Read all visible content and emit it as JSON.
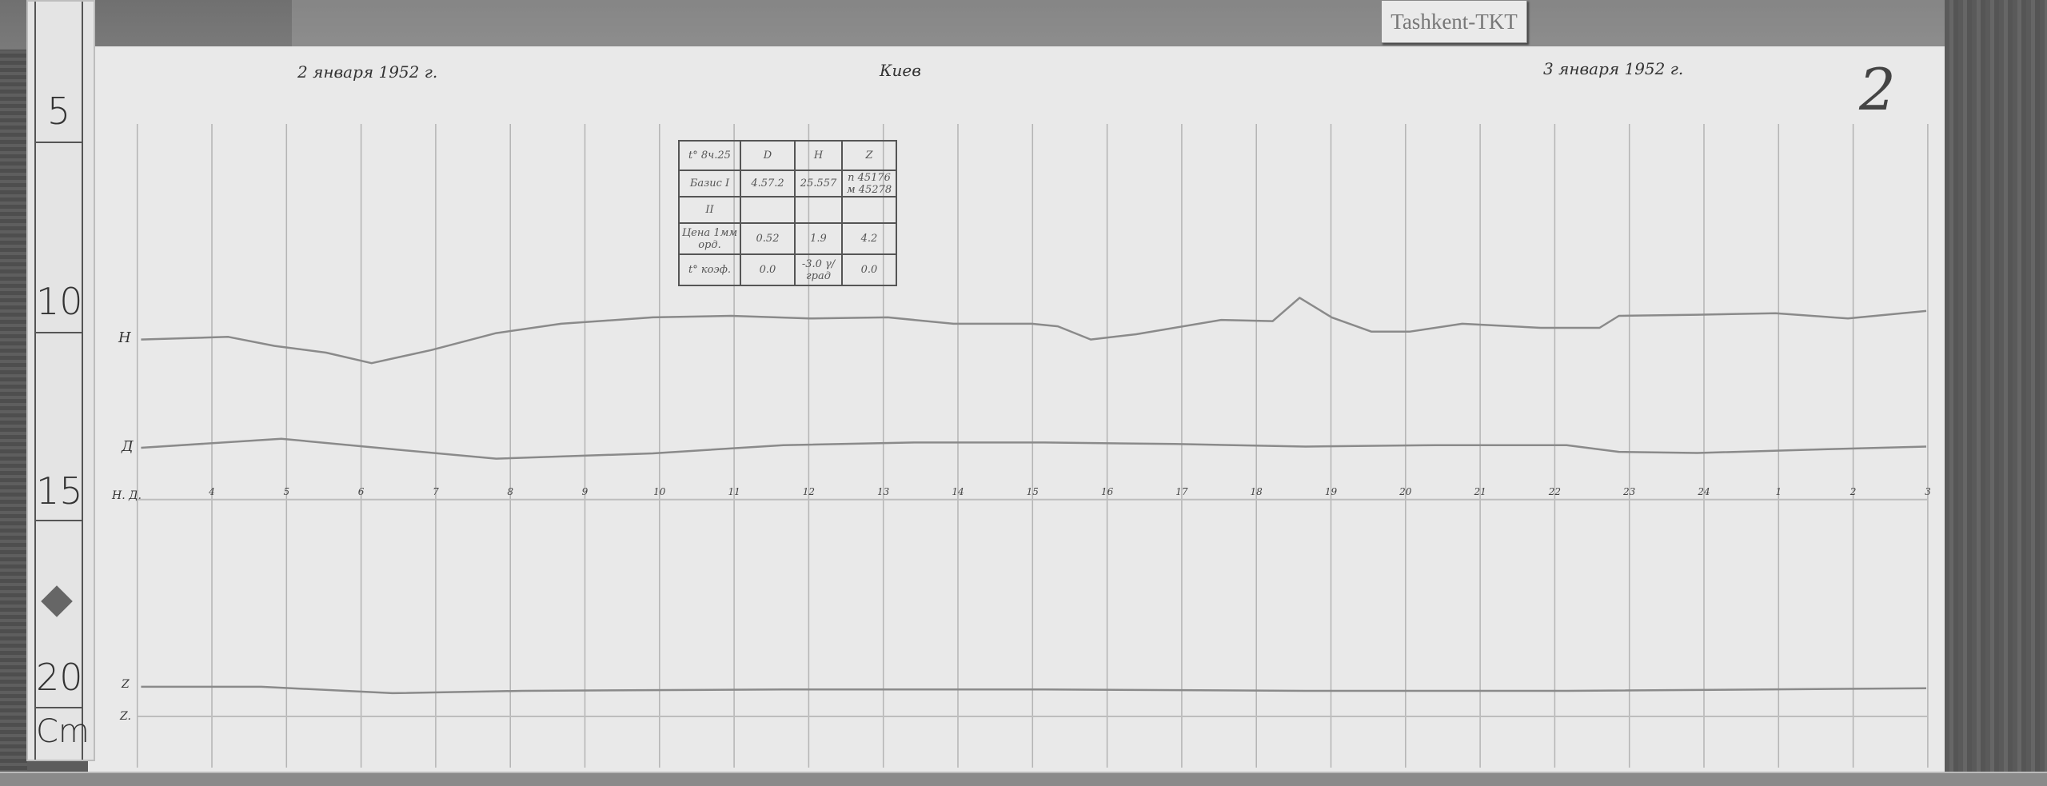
{
  "station_tag": "Tashkent-TKT",
  "header": {
    "start_date": "2 января 1952 г.",
    "station": "Киев",
    "end_date": "3 января 1952 г.",
    "sheet_number": "2"
  },
  "ruler": {
    "labels": [
      "5",
      "10",
      "15",
      "20"
    ],
    "unit": "Cm"
  },
  "trace_labels": {
    "h": "Н",
    "d": "Д",
    "hd_baseline": "H. Д.",
    "z": "Z",
    "z_baseline": "Z."
  },
  "info_table": {
    "rows": [
      [
        "t° 8ч.25",
        "D",
        "H",
        "Z"
      ],
      [
        "Базис I",
        "4.57.2",
        "25.557",
        "п 45176 м 45278"
      ],
      [
        "II",
        "",
        "",
        ""
      ],
      [
        "Цена 1мм орд.",
        "0.52",
        "1.9",
        "4.2"
      ],
      [
        "t° коэф.",
        "0.0",
        "-3.0 γ/град",
        "0.0"
      ]
    ]
  },
  "chart_data": {
    "type": "line",
    "title": "",
    "xlabel": "",
    "ylabel": "",
    "x_tick_labels": [
      "4",
      "5",
      "6",
      "7",
      "8",
      "9",
      "10",
      "11",
      "12",
      "13",
      "14",
      "15",
      "16",
      "17",
      "18",
      "19",
      "20",
      "21",
      "22",
      "23",
      "24",
      "1",
      "2",
      "3"
    ],
    "x_ticks_hours": [
      4,
      5,
      6,
      7,
      8,
      9,
      10,
      11,
      12,
      13,
      14,
      15,
      16,
      17,
      18,
      19,
      20,
      21,
      22,
      23,
      24,
      25,
      26,
      27
    ],
    "xlim": [
      3,
      27
    ],
    "y_unit": "Cm",
    "ylim": [
      3,
      21
    ],
    "grid": "vertical hourly lines",
    "baselines": [
      {
        "label": "H. Д.",
        "y": 15.23
      },
      {
        "label": "Z.",
        "y": 21.0
      }
    ],
    "series": [
      {
        "name": "Н",
        "x": [
          3.05,
          4.22,
          4.84,
          5.53,
          6.14,
          6.94,
          7.81,
          8.68,
          9.91,
          10.96,
          12.01,
          13.06,
          13.94,
          14.99,
          15.34,
          15.78,
          16.39,
          17.53,
          18.22,
          18.58,
          19.01,
          19.54,
          20.06,
          20.76,
          21.81,
          22.6,
          22.86,
          23.91,
          24.96,
          25.93,
          26.98
        ],
        "y": [
          10.97,
          10.9,
          11.14,
          11.32,
          11.6,
          11.25,
          10.8,
          10.55,
          10.38,
          10.34,
          10.41,
          10.38,
          10.55,
          10.55,
          10.62,
          10.97,
          10.83,
          10.45,
          10.48,
          9.86,
          10.38,
          10.76,
          10.76,
          10.55,
          10.66,
          10.66,
          10.34,
          10.31,
          10.27,
          10.41,
          10.21
        ]
      },
      {
        "name": "Д",
        "x": [
          3.05,
          4.93,
          6.42,
          7.81,
          9.91,
          11.66,
          13.41,
          15.16,
          16.91,
          18.66,
          20.41,
          22.16,
          22.86,
          23.91,
          25.66,
          26.98
        ],
        "y": [
          13.85,
          13.61,
          13.89,
          14.14,
          14.0,
          13.78,
          13.71,
          13.71,
          13.75,
          13.82,
          13.78,
          13.78,
          13.96,
          13.99,
          13.89,
          13.82
        ]
      },
      {
        "name": "Z",
        "x": [
          3.05,
          4.66,
          6.42,
          8.16,
          11.66,
          15.16,
          18.66,
          22.16,
          26.98
        ],
        "y": [
          20.21,
          20.21,
          20.38,
          20.32,
          20.28,
          20.28,
          20.32,
          20.32,
          20.25
        ]
      }
    ]
  },
  "colors": {
    "paper": "#e9e9e9",
    "trace": "#8a8a8a",
    "grid": "#b4b4b4",
    "wood": "#5c5c5c"
  }
}
